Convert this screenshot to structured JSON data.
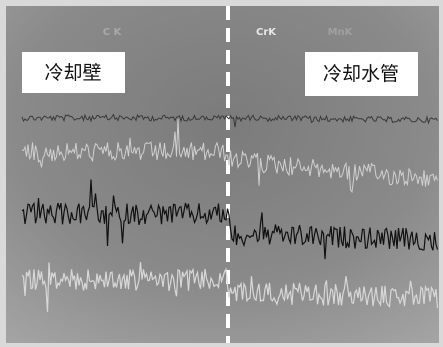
{
  "element_labels": [
    "C K",
    "CrK",
    "MnK"
  ],
  "regions": [
    "冷却壁",
    "冷却水管"
  ]
}
